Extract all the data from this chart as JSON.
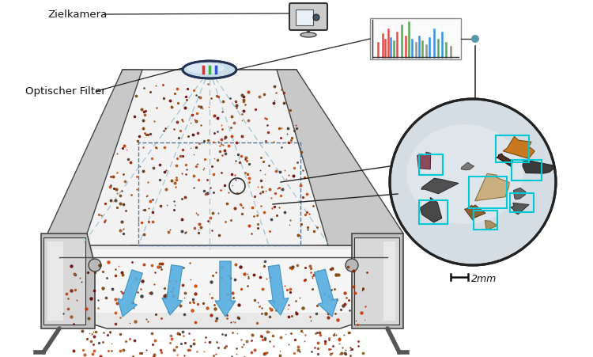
{
  "bg_color": "#ffffff",
  "label_zielkamera": "Zielkamera",
  "label_filter": "Optischer Filter",
  "arrow_color": "#5aafe0",
  "cyan_box_color": "#00c8d4",
  "spectrum_colors": [
    "#e53935",
    "#43a047",
    "#1e88e5",
    "#888888"
  ],
  "scatter_colors": [
    "#8b1a00",
    "#c03000",
    "#cc4400",
    "#7b3f00",
    "#5c3010",
    "#333333",
    "#804000",
    "#a05020",
    "#600000"
  ],
  "scatter_n": 350,
  "scatter_seed": 42,
  "conveyor_gray": "#d8d8d8",
  "conveyor_dark": "#555555",
  "conveyor_light": "#f0f0f0",
  "conveyor_mid": "#c0c0c0"
}
